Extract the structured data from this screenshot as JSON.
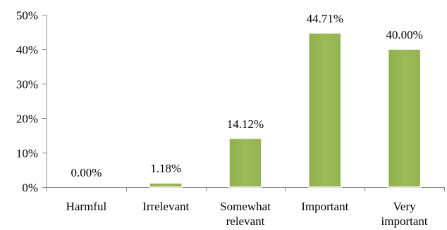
{
  "chart_data": {
    "type": "bar",
    "categories": [
      [
        "Harmful"
      ],
      [
        "Irrelevant"
      ],
      [
        "Somewhat",
        "relevant"
      ],
      [
        "Important"
      ],
      [
        "Very",
        "important"
      ]
    ],
    "values": [
      0.0,
      1.18,
      14.12,
      44.71,
      40.0
    ],
    "data_labels": [
      "0.00%",
      "1.18%",
      "14.12%",
      "44.71%",
      "40.00%"
    ],
    "ylim": [
      0,
      50
    ],
    "yticks": [
      0,
      10,
      20,
      30,
      40,
      50
    ],
    "ytick_labels": [
      "0%",
      "10%",
      "20%",
      "30%",
      "40%",
      "50%"
    ],
    "title": "",
    "xlabel": "",
    "ylabel": "",
    "grid": false,
    "legend": "none",
    "bar_color": "#9bbb59",
    "bar_highlight": "#b7d08a"
  }
}
